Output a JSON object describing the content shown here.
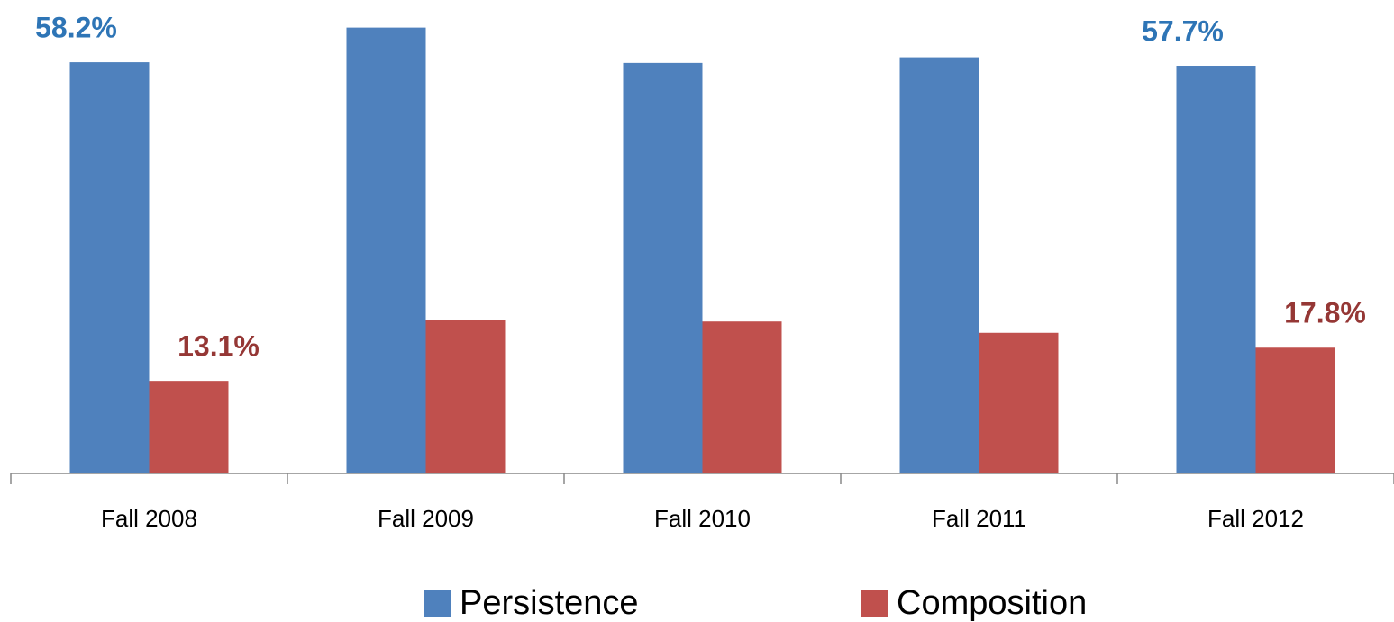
{
  "chart_data": {
    "type": "bar",
    "categories": [
      "Fall 2008",
      "Fall 2009",
      "Fall 2010",
      "Fall 2011",
      "Fall 2012"
    ],
    "series": [
      {
        "name": "Persistence",
        "color": "#4f81bd",
        "values": [
          58.2,
          63.1,
          58.1,
          58.9,
          57.7
        ],
        "value_labels": [
          "58.2%",
          null,
          null,
          null,
          "57.7%"
        ],
        "label_color": "#2e75b6"
      },
      {
        "name": "Composition",
        "color": "#c0504d",
        "values": [
          13.1,
          21.7,
          21.5,
          19.9,
          17.8
        ],
        "value_labels": [
          "13.1%",
          null,
          null,
          null,
          "17.8%"
        ],
        "label_color": "#953735"
      }
    ],
    "ylim": [
      0,
      67
    ],
    "legend": "bottom"
  }
}
